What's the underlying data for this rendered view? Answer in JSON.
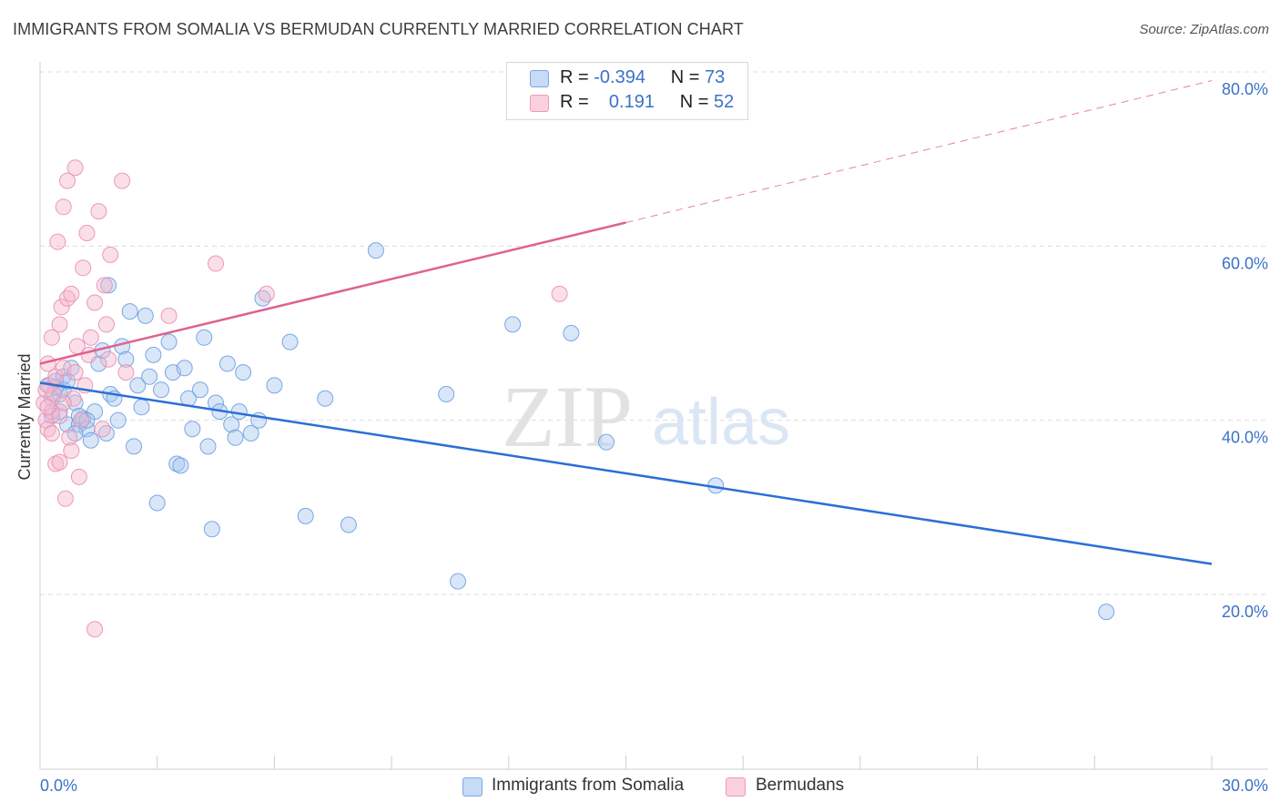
{
  "header": {
    "title": "IMMIGRANTS FROM SOMALIA VS BERMUDAN CURRENTLY MARRIED CORRELATION CHART",
    "source": "Source: ZipAtlas.com"
  },
  "watermark": {
    "zip": "ZIP",
    "atlas": "atlas"
  },
  "stats_legend": {
    "rows": [
      {
        "r_label": "R =",
        "r_value": "-0.394",
        "n_label": "N =",
        "n_value": "73",
        "color": "#a9c8f0"
      },
      {
        "r_label": "R =",
        "r_value": "0.191",
        "n_label": "N =",
        "n_value": "52",
        "color": "#f5b9cd"
      }
    ]
  },
  "bottom_legend": {
    "items": [
      {
        "label": "Immigrants from Somalia",
        "color": "#a9c8f0"
      },
      {
        "label": "Bermudans",
        "color": "#f5b9cd"
      }
    ]
  },
  "colors": {
    "blue_point": "#a9c8f0",
    "blue_line": "#2a6fd6",
    "pink_point": "#f5b9cd",
    "pink_line": "#e0628e",
    "tick_label": "#3a72c8"
  },
  "chart_data": {
    "type": "scatter",
    "title": "IMMIGRANTS FROM SOMALIA VS BERMUDAN CURRENTLY MARRIED CORRELATION CHART",
    "xlabel": "",
    "ylabel": "Currently Married",
    "xlim": [
      0,
      30
    ],
    "ylim": [
      0,
      85
    ],
    "x_tick_labels": [
      "0.0%",
      "30.0%"
    ],
    "y_ticks": [
      20,
      40,
      60,
      80
    ],
    "y_tick_labels": [
      "20.0%",
      "40.0%",
      "60.0%",
      "80.0%"
    ],
    "grid": true,
    "legend_position": "top-center",
    "series": [
      {
        "name": "Immigrants from Somalia",
        "color": "#a9c8f0",
        "points": [
          [
            0.2,
            44
          ],
          [
            0.3,
            42.5
          ],
          [
            0.4,
            44.5
          ],
          [
            0.5,
            43
          ],
          [
            0.5,
            41
          ],
          [
            0.6,
            45
          ],
          [
            0.7,
            39.5
          ],
          [
            0.8,
            46
          ],
          [
            0.9,
            42
          ],
          [
            1.0,
            39.5
          ],
          [
            1.1,
            40.2
          ],
          [
            1.2,
            39
          ],
          [
            1.3,
            37.7
          ],
          [
            1.4,
            41
          ],
          [
            1.5,
            46.5
          ],
          [
            1.6,
            48
          ],
          [
            1.7,
            38.5
          ],
          [
            1.75,
            55.5
          ],
          [
            1.8,
            43
          ],
          [
            1.9,
            42.5
          ],
          [
            2.0,
            40
          ],
          [
            2.1,
            48.5
          ],
          [
            2.2,
            47
          ],
          [
            2.3,
            52.5
          ],
          [
            2.4,
            37
          ],
          [
            2.5,
            44
          ],
          [
            2.6,
            41.5
          ],
          [
            2.7,
            52
          ],
          [
            2.8,
            45
          ],
          [
            2.9,
            47.5
          ],
          [
            3.0,
            30.5
          ],
          [
            3.1,
            43.5
          ],
          [
            3.3,
            49
          ],
          [
            3.4,
            45.5
          ],
          [
            3.5,
            35
          ],
          [
            3.6,
            34.8
          ],
          [
            3.7,
            46
          ],
          [
            3.8,
            42.5
          ],
          [
            3.9,
            39
          ],
          [
            4.1,
            43.5
          ],
          [
            4.2,
            49.5
          ],
          [
            4.3,
            37
          ],
          [
            4.4,
            27.5
          ],
          [
            4.5,
            42
          ],
          [
            4.6,
            41
          ],
          [
            4.8,
            46.5
          ],
          [
            4.9,
            39.5
          ],
          [
            5.0,
            38
          ],
          [
            5.1,
            41
          ],
          [
            5.2,
            45.5
          ],
          [
            5.4,
            38.5
          ],
          [
            5.6,
            40
          ],
          [
            5.7,
            54
          ],
          [
            6.0,
            44
          ],
          [
            6.4,
            49
          ],
          [
            6.8,
            29
          ],
          [
            7.3,
            42.5
          ],
          [
            7.9,
            28
          ],
          [
            8.6,
            59.5
          ],
          [
            10.4,
            43
          ],
          [
            10.7,
            21.5
          ],
          [
            12.1,
            51
          ],
          [
            13.6,
            50
          ],
          [
            14.5,
            37.5
          ],
          [
            17.3,
            32.5
          ],
          [
            27.3,
            18
          ],
          [
            0.3,
            40.5
          ],
          [
            0.6,
            43.5
          ],
          [
            0.9,
            38.5
          ],
          [
            1.0,
            40.5
          ],
          [
            0.4,
            43.8
          ],
          [
            0.7,
            44.5
          ],
          [
            1.2,
            40
          ]
        ]
      },
      {
        "name": "Bermudans",
        "color": "#f5b9cd",
        "points": [
          [
            0.1,
            42
          ],
          [
            0.15,
            40
          ],
          [
            0.2,
            46.5
          ],
          [
            0.2,
            39
          ],
          [
            0.25,
            44
          ],
          [
            0.3,
            49.5
          ],
          [
            0.3,
            41
          ],
          [
            0.35,
            43
          ],
          [
            0.4,
            35
          ],
          [
            0.4,
            45
          ],
          [
            0.45,
            60.5
          ],
          [
            0.5,
            51
          ],
          [
            0.5,
            35.2
          ],
          [
            0.55,
            53
          ],
          [
            0.6,
            46
          ],
          [
            0.6,
            64.5
          ],
          [
            0.65,
            31
          ],
          [
            0.7,
            54
          ],
          [
            0.7,
            67.5
          ],
          [
            0.75,
            38
          ],
          [
            0.8,
            54.5
          ],
          [
            0.8,
            36.5
          ],
          [
            0.85,
            42.5
          ],
          [
            0.9,
            69
          ],
          [
            0.95,
            48.5
          ],
          [
            1.0,
            33.5
          ],
          [
            1.05,
            40
          ],
          [
            1.1,
            57.5
          ],
          [
            1.15,
            44
          ],
          [
            1.2,
            61.5
          ],
          [
            1.25,
            47.5
          ],
          [
            1.3,
            49.5
          ],
          [
            1.4,
            53.5
          ],
          [
            1.5,
            64
          ],
          [
            1.6,
            39
          ],
          [
            1.65,
            55.5
          ],
          [
            1.7,
            51
          ],
          [
            1.75,
            47
          ],
          [
            1.8,
            59
          ],
          [
            1.4,
            16
          ],
          [
            2.1,
            67.5
          ],
          [
            2.2,
            45.5
          ],
          [
            3.3,
            52
          ],
          [
            4.5,
            58
          ],
          [
            5.8,
            54.5
          ],
          [
            13.3,
            54.5
          ],
          [
            0.3,
            38.5
          ],
          [
            0.5,
            40.5
          ],
          [
            0.2,
            41.5
          ],
          [
            0.6,
            42
          ],
          [
            0.9,
            45.5
          ],
          [
            0.15,
            43.5
          ]
        ]
      }
    ],
    "trend_lines": [
      {
        "series": "Immigrants from Somalia",
        "x": [
          0,
          30
        ],
        "y": [
          44.3,
          23.5
        ],
        "style": "solid"
      },
      {
        "series": "Bermudans",
        "x": [
          0,
          15
        ],
        "y": [
          46.5,
          62.7
        ],
        "style": "solid"
      },
      {
        "series": "Bermudans",
        "x": [
          15,
          30
        ],
        "y": [
          62.7,
          79
        ],
        "style": "dashed"
      }
    ]
  }
}
